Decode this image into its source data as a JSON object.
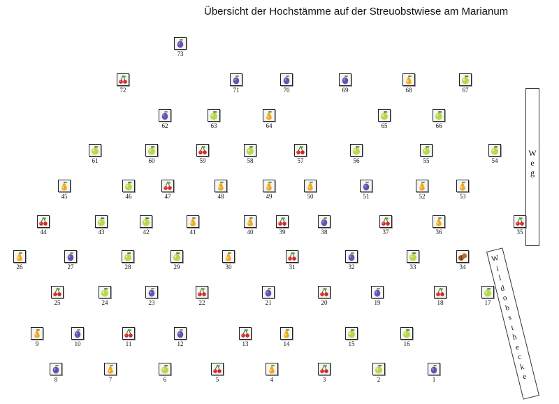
{
  "title": "Übersicht der Hochstämme auf der Streuobstwiese am Marianum",
  "path_labels": {
    "weg": "Weg",
    "wildobsthecke": "Wildobsthecke"
  },
  "fruit_types": {
    "plum": {
      "icon": "plum-icon",
      "color": "#6a4fb0"
    },
    "pear": {
      "icon": "pear-icon",
      "color": "#f0a820"
    },
    "apple": {
      "icon": "apple-icon",
      "color": "#b8d84a"
    },
    "cherry": {
      "icon": "cherry-icon",
      "color": "#d42828"
    },
    "walnut": {
      "icon": "walnut-icon",
      "color": "#9a5a2a"
    }
  },
  "trees": [
    {
      "n": "73",
      "type": "plum"
    },
    {
      "n": "72",
      "type": "cherry"
    },
    {
      "n": "71",
      "type": "plum"
    },
    {
      "n": "70",
      "type": "plum"
    },
    {
      "n": "69",
      "type": "plum"
    },
    {
      "n": "68",
      "type": "pear"
    },
    {
      "n": "67",
      "type": "apple"
    },
    {
      "n": "62",
      "type": "plum"
    },
    {
      "n": "63",
      "type": "apple"
    },
    {
      "n": "64",
      "type": "pear"
    },
    {
      "n": "65",
      "type": "apple"
    },
    {
      "n": "66",
      "type": "apple"
    },
    {
      "n": "61",
      "type": "apple"
    },
    {
      "n": "60",
      "type": "apple"
    },
    {
      "n": "59",
      "type": "cherry"
    },
    {
      "n": "58",
      "type": "apple"
    },
    {
      "n": "57",
      "type": "cherry"
    },
    {
      "n": "56",
      "type": "apple"
    },
    {
      "n": "55",
      "type": "apple"
    },
    {
      "n": "54",
      "type": "apple"
    },
    {
      "n": "45",
      "type": "pear"
    },
    {
      "n": "46",
      "type": "apple"
    },
    {
      "n": "47",
      "type": "cherry"
    },
    {
      "n": "48",
      "type": "pear"
    },
    {
      "n": "49",
      "type": "pear"
    },
    {
      "n": "50",
      "type": "pear"
    },
    {
      "n": "51",
      "type": "plum"
    },
    {
      "n": "52",
      "type": "pear"
    },
    {
      "n": "53",
      "type": "pear"
    },
    {
      "n": "44",
      "type": "cherry"
    },
    {
      "n": "43",
      "type": "apple"
    },
    {
      "n": "42",
      "type": "apple"
    },
    {
      "n": "41",
      "type": "pear"
    },
    {
      "n": "40",
      "type": "pear"
    },
    {
      "n": "39",
      "type": "cherry"
    },
    {
      "n": "38",
      "type": "plum"
    },
    {
      "n": "37",
      "type": "cherry"
    },
    {
      "n": "36",
      "type": "pear"
    },
    {
      "n": "35",
      "type": "cherry"
    },
    {
      "n": "26",
      "type": "pear"
    },
    {
      "n": "27",
      "type": "plum"
    },
    {
      "n": "28",
      "type": "apple"
    },
    {
      "n": "29",
      "type": "apple"
    },
    {
      "n": "30",
      "type": "pear"
    },
    {
      "n": "31",
      "type": "cherry"
    },
    {
      "n": "32",
      "type": "plum"
    },
    {
      "n": "33",
      "type": "apple"
    },
    {
      "n": "34",
      "type": "walnut"
    },
    {
      "n": "25",
      "type": "cherry"
    },
    {
      "n": "24",
      "type": "apple"
    },
    {
      "n": "23",
      "type": "plum"
    },
    {
      "n": "22",
      "type": "cherry"
    },
    {
      "n": "21",
      "type": "plum"
    },
    {
      "n": "20",
      "type": "cherry"
    },
    {
      "n": "19",
      "type": "plum"
    },
    {
      "n": "18",
      "type": "cherry"
    },
    {
      "n": "17",
      "type": "apple"
    },
    {
      "n": "9",
      "type": "pear"
    },
    {
      "n": "10",
      "type": "plum"
    },
    {
      "n": "11",
      "type": "cherry"
    },
    {
      "n": "12",
      "type": "plum"
    },
    {
      "n": "13",
      "type": "cherry"
    },
    {
      "n": "14",
      "type": "pear"
    },
    {
      "n": "15",
      "type": "apple"
    },
    {
      "n": "16",
      "type": "apple"
    },
    {
      "n": "8",
      "type": "plum"
    },
    {
      "n": "7",
      "type": "pear"
    },
    {
      "n": "6",
      "type": "apple"
    },
    {
      "n": "5",
      "type": "cherry"
    },
    {
      "n": "4",
      "type": "pear"
    },
    {
      "n": "3",
      "type": "cherry"
    },
    {
      "n": "2",
      "type": "apple"
    },
    {
      "n": "1",
      "type": "plum"
    }
  ]
}
